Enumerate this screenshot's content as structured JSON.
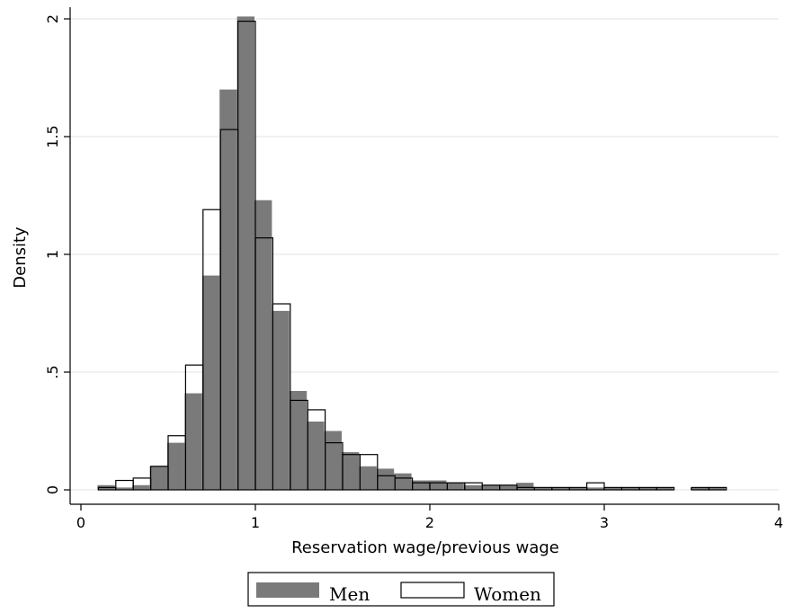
{
  "chart_data": {
    "type": "bar",
    "xlabel": "Reservation wage/previous wage",
    "ylabel": "Density",
    "xlim": [
      0,
      4
    ],
    "ylim": [
      0,
      2
    ],
    "xticks": [
      0,
      1,
      2,
      3,
      4
    ],
    "xtick_labels": [
      "0",
      "1",
      "2",
      "3",
      "4"
    ],
    "yticks": [
      0,
      0.5,
      1,
      1.5,
      2
    ],
    "ytick_labels": [
      "0",
      ".5",
      "1",
      "1.5",
      "2"
    ],
    "grid": true,
    "legend_position": "bottom",
    "bin_width": 0.1,
    "series": [
      {
        "name": "Men",
        "style": "filled",
        "color": "#7a7a7a",
        "x": [
          0.1,
          0.2,
          0.3,
          0.4,
          0.5,
          0.6,
          0.7,
          0.8,
          0.9,
          1.0,
          1.1,
          1.2,
          1.3,
          1.4,
          1.5,
          1.6,
          1.7,
          1.8,
          1.9,
          2.0,
          2.1,
          2.2,
          2.3,
          2.4,
          2.5,
          2.6,
          2.7,
          2.8,
          2.9,
          3.0,
          3.1,
          3.2,
          3.3,
          3.5,
          3.6
        ],
        "values": [
          0.02,
          0.01,
          0.02,
          0.1,
          0.2,
          0.41,
          0.91,
          1.7,
          2.01,
          1.23,
          0.76,
          0.42,
          0.29,
          0.25,
          0.16,
          0.1,
          0.09,
          0.07,
          0.04,
          0.04,
          0.03,
          0.02,
          0.02,
          0.02,
          0.03,
          0.01,
          0.01,
          0.01,
          0.01,
          0.01,
          0.01,
          0.01,
          0.01,
          0.01,
          0.01
        ]
      },
      {
        "name": "Women",
        "style": "outline",
        "color": "#000000",
        "x": [
          0.1,
          0.2,
          0.3,
          0.4,
          0.5,
          0.6,
          0.7,
          0.8,
          0.9,
          1.0,
          1.1,
          1.2,
          1.3,
          1.4,
          1.5,
          1.6,
          1.7,
          1.8,
          1.9,
          2.0,
          2.1,
          2.2,
          2.3,
          2.4,
          2.5,
          2.6,
          2.7,
          2.8,
          2.9,
          3.0,
          3.1,
          3.2,
          3.3,
          3.5,
          3.6
        ],
        "values": [
          0.01,
          0.04,
          0.05,
          0.1,
          0.23,
          0.53,
          1.19,
          1.53,
          1.99,
          1.07,
          0.79,
          0.38,
          0.34,
          0.2,
          0.15,
          0.15,
          0.06,
          0.05,
          0.03,
          0.03,
          0.03,
          0.03,
          0.02,
          0.02,
          0.01,
          0.01,
          0.01,
          0.01,
          0.03,
          0.01,
          0.01,
          0.01,
          0.01,
          0.01,
          0.01
        ]
      }
    ]
  }
}
